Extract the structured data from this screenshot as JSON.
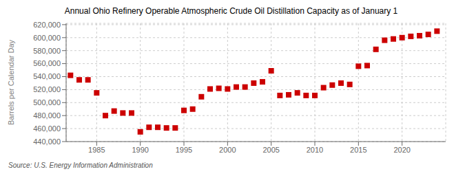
{
  "chart_data": {
    "type": "scatter",
    "title": "Annual Ohio Refinery Operable Atmospheric Crude Oil Distillation Capacity as of January 1",
    "y_label": "Barrels per Calendar Day",
    "annotations": [
      "Source: U.S. Energy Information Administration"
    ],
    "x": [
      1982,
      1983,
      1984,
      1985,
      1986,
      1987,
      1988,
      1989,
      1990,
      1991,
      1992,
      1993,
      1994,
      1995,
      1996,
      1997,
      1998,
      1999,
      2000,
      2001,
      2002,
      2003,
      2004,
      2005,
      2006,
      2007,
      2008,
      2009,
      2010,
      2011,
      2012,
      2013,
      2014,
      2015,
      2016,
      2017,
      2018,
      2019,
      2020,
      2021,
      2022,
      2023,
      2024
    ],
    "values": [
      542000,
      535000,
      535000,
      515000,
      480000,
      487000,
      484000,
      484000,
      455000,
      462000,
      462000,
      461000,
      461000,
      488000,
      490000,
      509000,
      521000,
      522000,
      521000,
      524000,
      524000,
      530000,
      532000,
      549000,
      511000,
      512000,
      515000,
      511000,
      511000,
      523000,
      527000,
      530000,
      528000,
      556000,
      557000,
      582000,
      596000,
      598000,
      600000,
      602000,
      603000,
      605000,
      610000
    ],
    "color": "#cc0000",
    "marker": "square",
    "xlim": [
      1981.5,
      2025
    ],
    "xticks": [
      1985,
      1990,
      1995,
      2000,
      2005,
      2010,
      2015,
      2020
    ],
    "ylim": [
      440000,
      622000
    ],
    "yticks": [
      {
        "value": 440000,
        "label": "440,000"
      },
      {
        "value": 460000,
        "label": "460,000"
      },
      {
        "value": 480000,
        "label": "480,000"
      },
      {
        "value": 500000,
        "label": "500,000"
      },
      {
        "value": 520000,
        "label": "520,000"
      },
      {
        "value": 540000,
        "label": "540,000"
      },
      {
        "value": 560000,
        "label": "560,000"
      },
      {
        "value": 580000,
        "label": "580,000"
      },
      {
        "value": 600000,
        "label": "600,000"
      },
      {
        "value": 620000,
        "label": "620,000"
      }
    ],
    "grid": true
  }
}
